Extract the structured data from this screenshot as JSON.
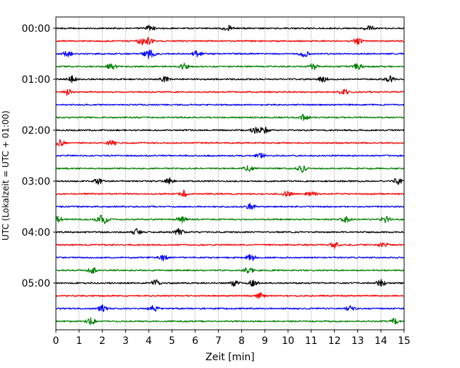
{
  "chart_data": {
    "type": "line",
    "title": "",
    "xlabel": "Zeit  [min]",
    "ylabel": "UTC (Lokalzeit = UTC + 01:00)",
    "xlim": [
      0,
      15
    ],
    "x_ticks": [
      "0",
      "1",
      "2",
      "3",
      "4",
      "5",
      "6",
      "7",
      "8",
      "9",
      "10",
      "11",
      "12",
      "13",
      "14",
      "15"
    ],
    "y_ticks": [
      "00:00",
      "01:00",
      "02:00",
      "03:00",
      "04:00",
      "05:00"
    ],
    "grid": {
      "vertical_dotted": true
    },
    "trace_interval_min": 15,
    "colors_cycle": [
      "#000000",
      "#ff0000",
      "#0000ff",
      "#008000"
    ],
    "series": [
      {
        "start": "00:00",
        "color": "#000000",
        "events": [
          4.05,
          7.4,
          13.5
        ]
      },
      {
        "start": "00:15",
        "color": "#ff0000",
        "events": [
          3.7,
          4.0,
          13.0
        ]
      },
      {
        "start": "00:30",
        "color": "#0000ff",
        "events": [
          0.5,
          3.9,
          4.1,
          6.1,
          10.7
        ]
      },
      {
        "start": "00:45",
        "color": "#008000",
        "events": [
          2.4,
          5.5,
          11.1,
          13.0
        ]
      },
      {
        "start": "01:00",
        "color": "#000000",
        "events": [
          0.7,
          4.7,
          11.5,
          14.4
        ]
      },
      {
        "start": "01:15",
        "color": "#ff0000",
        "events": [
          0.5,
          12.4
        ]
      },
      {
        "start": "01:30",
        "color": "#0000ff",
        "events": []
      },
      {
        "start": "01:45",
        "color": "#008000",
        "events": [
          10.7
        ]
      },
      {
        "start": "02:00",
        "color": "#000000",
        "events": [
          8.6,
          9.0
        ]
      },
      {
        "start": "02:15",
        "color": "#ff0000",
        "events": [
          0.2,
          2.4
        ]
      },
      {
        "start": "02:30",
        "color": "#0000ff",
        "events": [
          8.8
        ]
      },
      {
        "start": "02:45",
        "color": "#008000",
        "events": [
          8.3,
          10.6
        ]
      },
      {
        "start": "03:00",
        "color": "#000000",
        "events": [
          1.8,
          4.9,
          14.7
        ]
      },
      {
        "start": "03:15",
        "color": "#ff0000",
        "events": [
          5.5,
          10.0,
          11.0
        ]
      },
      {
        "start": "03:30",
        "color": "#0000ff",
        "events": [
          8.4
        ]
      },
      {
        "start": "03:45",
        "color": "#008000",
        "events": [
          0.1,
          1.9,
          2.1,
          5.4,
          12.5,
          14.2
        ]
      },
      {
        "start": "04:00",
        "color": "#000000",
        "events": [
          3.5,
          5.3
        ]
      },
      {
        "start": "04:15",
        "color": "#ff0000",
        "events": [
          12.0,
          14.1
        ]
      },
      {
        "start": "04:30",
        "color": "#0000ff",
        "events": [
          4.6,
          8.4
        ]
      },
      {
        "start": "04:45",
        "color": "#008000",
        "events": [
          1.6,
          8.3
        ]
      },
      {
        "start": "05:00",
        "color": "#000000",
        "events": [
          4.3,
          7.7,
          8.5,
          14.0
        ]
      },
      {
        "start": "05:15",
        "color": "#ff0000",
        "events": [
          8.8
        ]
      },
      {
        "start": "05:30",
        "color": "#0000ff",
        "events": [
          2.0,
          4.2,
          12.7
        ]
      },
      {
        "start": "05:45",
        "color": "#008000",
        "events": [
          1.5,
          14.6
        ]
      }
    ]
  }
}
